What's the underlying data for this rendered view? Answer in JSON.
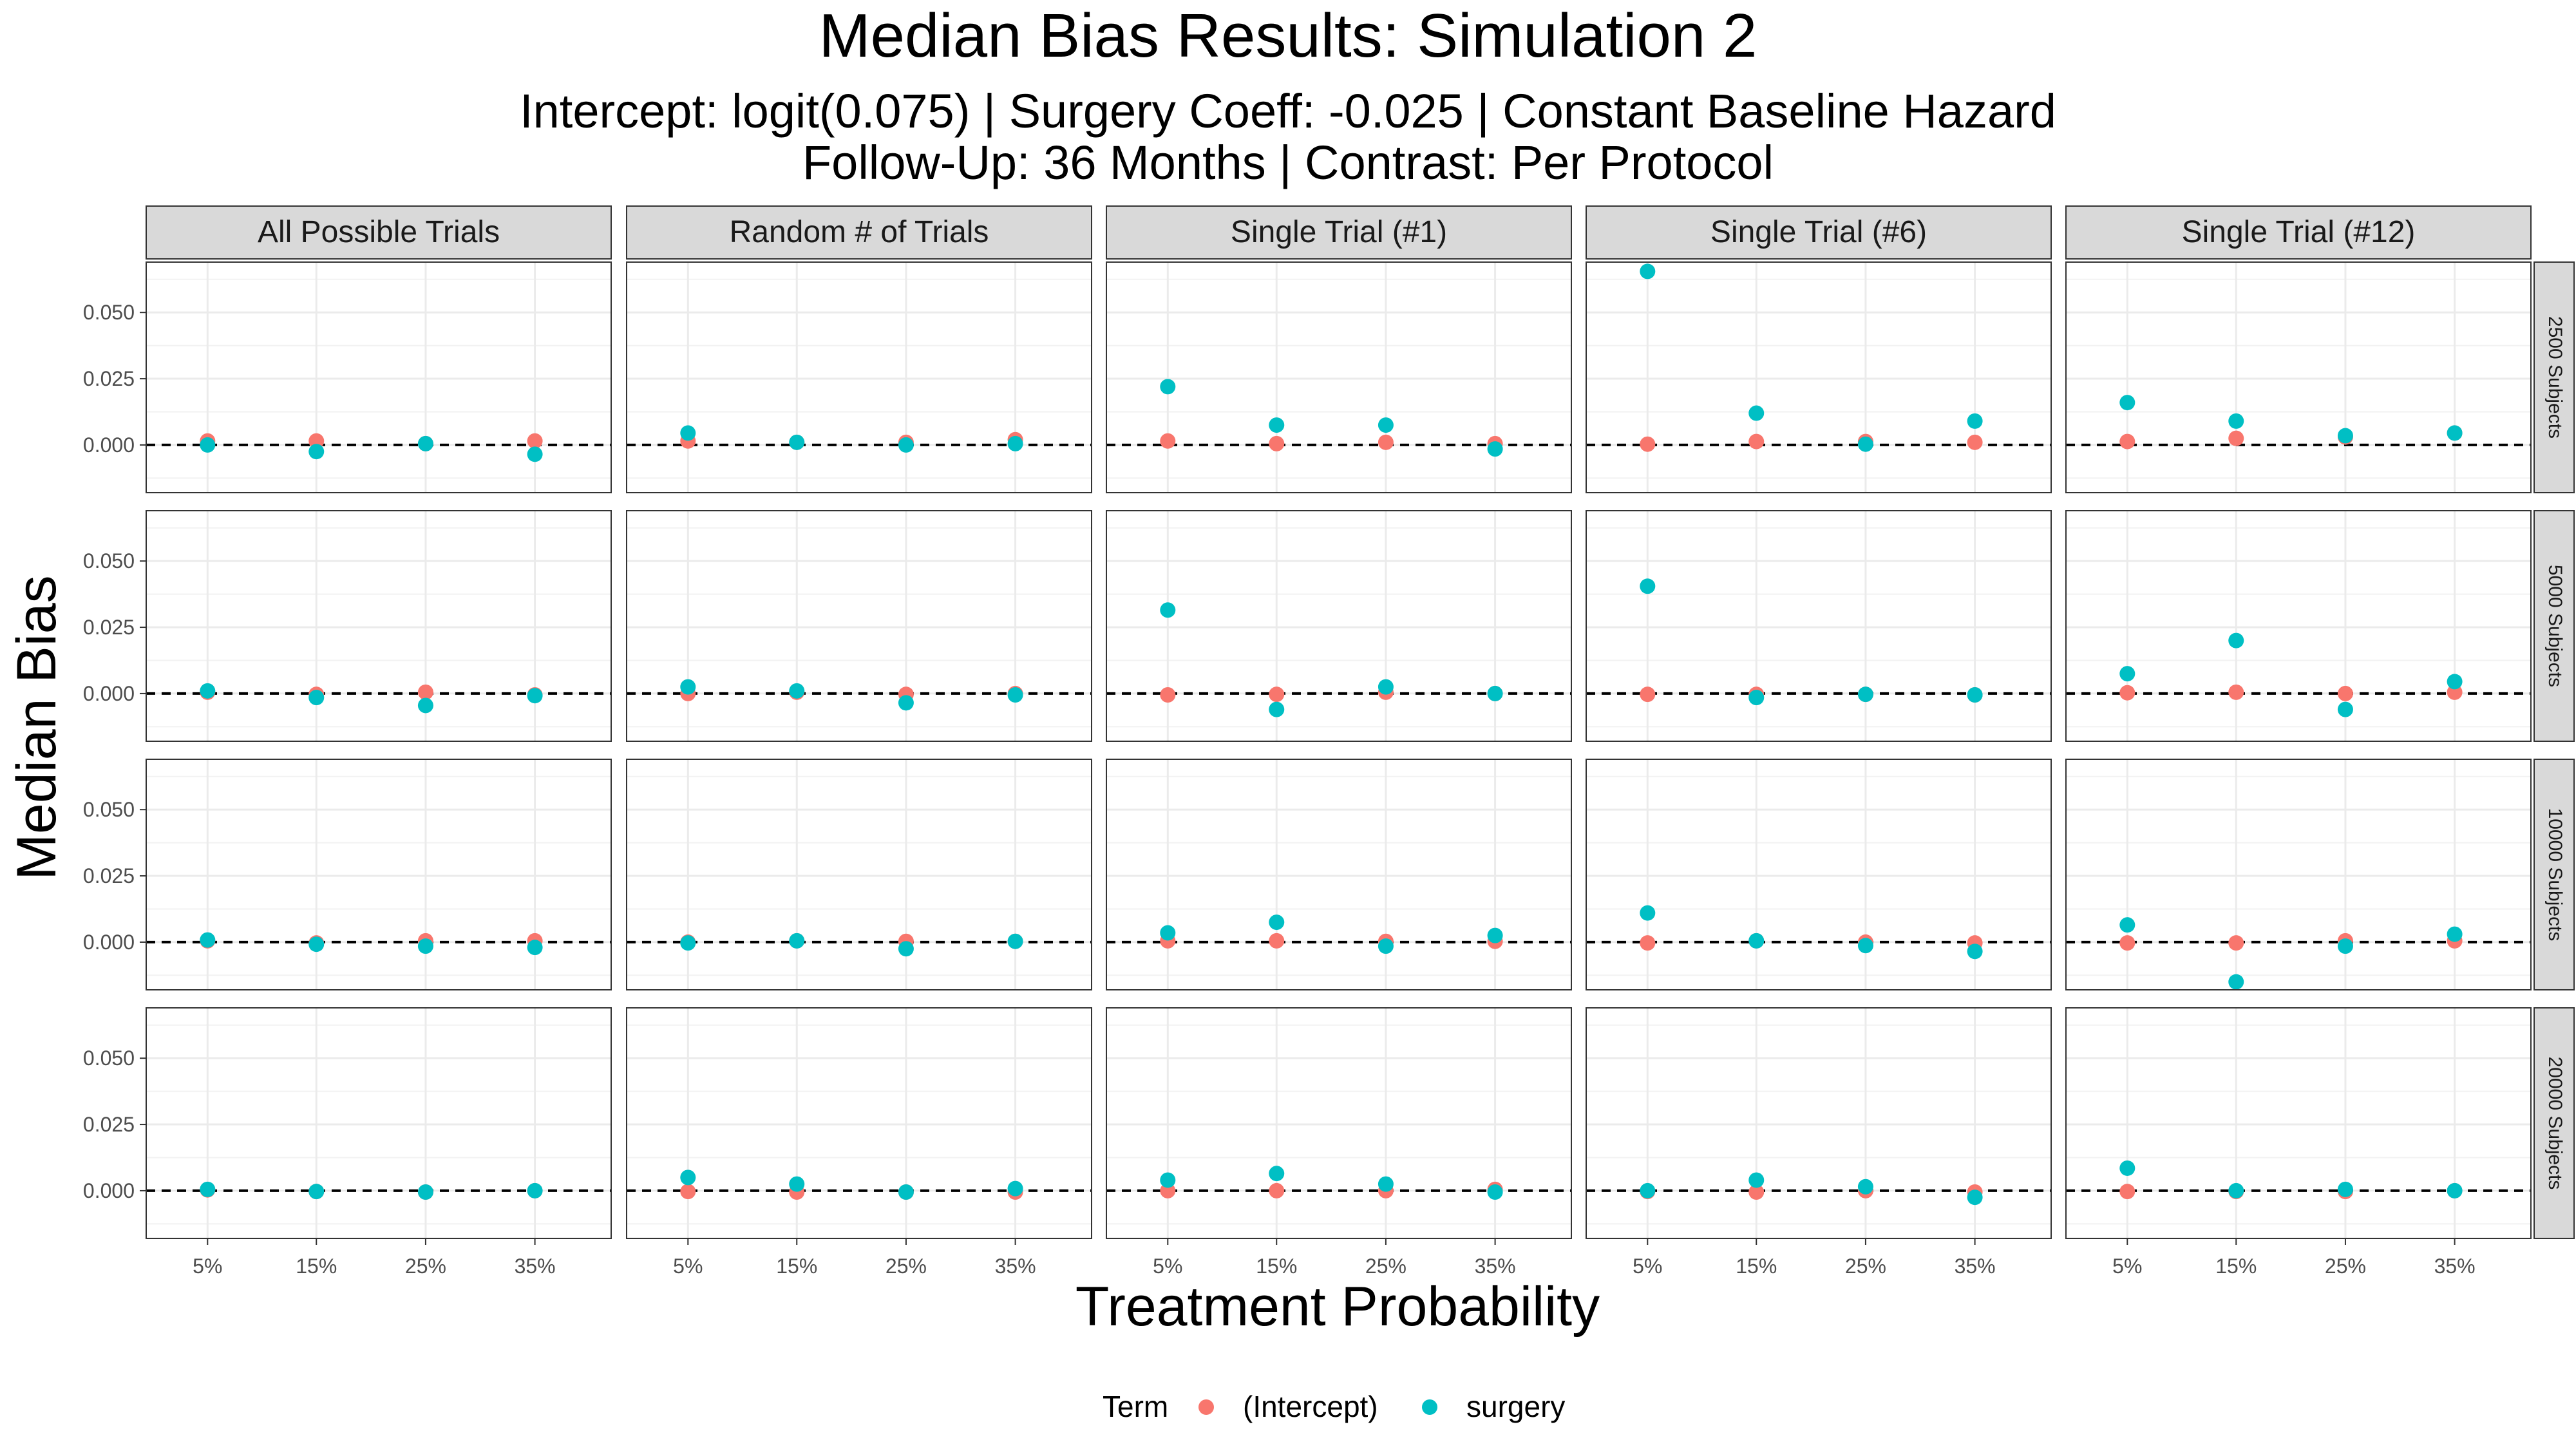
{
  "chart_data": {
    "type": "scatter",
    "title": "Median Bias Results: Simulation 2",
    "subtitle_lines": [
      "Intercept: logit(0.075) | Surgery Coeff: -0.025 | Constant Baseline Hazard",
      "Follow-Up: 36 Months | Contrast: Per Protocol"
    ],
    "xlabel": "Treatment Probability",
    "ylabel": "Median Bias",
    "x_categories": [
      "5%",
      "15%",
      "25%",
      "35%"
    ],
    "y_ticks": [
      "0.000",
      "0.025",
      "0.050"
    ],
    "y_tick_values": [
      0.0,
      0.025,
      0.05
    ],
    "ylim": [
      -0.018,
      0.069
    ],
    "reference_line": 0,
    "grid": true,
    "facet_columns": [
      "All Possible Trials",
      "Random # of Trials",
      "Single Trial (#1)",
      "Single Trial (#6)",
      "Single Trial (#12)"
    ],
    "facet_rows": [
      "2500 Subjects",
      "5000 Subjects",
      "10000 Subjects",
      "20000 Subjects"
    ],
    "legend": {
      "title": "Term",
      "position": "bottom",
      "items": [
        {
          "name": "(Intercept)",
          "color": "#F8766D"
        },
        {
          "name": "surgery",
          "color": "#00BFC4"
        }
      ]
    },
    "series": [
      {
        "name": "(Intercept)",
        "color": "#F8766D",
        "values": [
          [
            [
              0.0015,
              0.0015,
              0.0005,
              0.0015
            ],
            [
              0.0015,
              0.001,
              0.001,
              0.002
            ],
            [
              0.0015,
              0.0005,
              0.001,
              0.0005
            ],
            [
              0.0003,
              0.0013,
              0.0013,
              0.001
            ],
            [
              0.0013,
              0.0025,
              0.003,
              0.0045
            ]
          ],
          [
            [
              0.0005,
              -0.0003,
              0.0005,
              -0.0005
            ],
            [
              0.0,
              0.0005,
              -0.0003,
              0.0
            ],
            [
              -0.0005,
              -0.0003,
              0.0005,
              0.0
            ],
            [
              -0.0003,
              -0.0003,
              -0.0003,
              -0.0005
            ],
            [
              0.0003,
              0.0005,
              0.0,
              0.0005
            ]
          ],
          [
            [
              0.0005,
              -0.0003,
              0.0005,
              0.0005
            ],
            [
              0.0,
              0.0005,
              0.0003,
              0.0003
            ],
            [
              0.0005,
              0.0005,
              0.0003,
              0.0003
            ],
            [
              -0.0003,
              0.0005,
              0.0,
              -0.0003
            ],
            [
              -0.0003,
              -0.0003,
              0.0005,
              0.0005
            ]
          ],
          [
            [
              0.0003,
              -0.0003,
              -0.0005,
              0.0
            ],
            [
              -0.0003,
              -0.0005,
              -0.0005,
              -0.0005
            ],
            [
              0.0,
              0.0,
              0.0,
              0.0005
            ],
            [
              -0.0003,
              -0.0005,
              0.0,
              -0.0005
            ],
            [
              -0.0003,
              -0.0003,
              -0.0003,
              0.0
            ]
          ]
        ]
      },
      {
        "name": "surgery",
        "color": "#00BFC4",
        "values": [
          [
            [
              0.0,
              -0.0025,
              0.0005,
              -0.0035
            ],
            [
              0.0045,
              0.001,
              0.0,
              0.0005
            ],
            [
              0.022,
              0.0075,
              0.0075,
              -0.0015
            ],
            [
              0.0655,
              0.012,
              0.0003,
              0.009
            ],
            [
              0.016,
              0.009,
              0.0035,
              0.0045
            ]
          ],
          [
            [
              0.001,
              -0.0015,
              -0.0045,
              -0.0008
            ],
            [
              0.0025,
              0.001,
              -0.0035,
              -0.0005
            ],
            [
              0.0315,
              -0.006,
              0.0025,
              0.0
            ],
            [
              0.0405,
              -0.0015,
              -0.0003,
              -0.0005
            ],
            [
              0.0075,
              0.02,
              -0.006,
              0.0045
            ]
          ],
          [
            [
              0.0008,
              -0.0008,
              -0.0015,
              -0.002
            ],
            [
              -0.0003,
              0.0005,
              -0.0025,
              0.0003
            ],
            [
              0.0035,
              0.0075,
              -0.0015,
              0.0025
            ],
            [
              0.011,
              0.0005,
              -0.0013,
              -0.0035
            ],
            [
              0.0065,
              -0.015,
              -0.0015,
              0.003
            ]
          ],
          [
            [
              0.0005,
              -0.0003,
              -0.0005,
              0.0
            ],
            [
              0.005,
              0.0025,
              -0.0005,
              0.0008
            ],
            [
              0.004,
              0.0065,
              0.0025,
              -0.0005
            ],
            [
              0.0,
              0.004,
              0.0015,
              -0.0025
            ],
            [
              0.0085,
              0.0,
              0.0005,
              0.0
            ]
          ]
        ]
      }
    ]
  }
}
